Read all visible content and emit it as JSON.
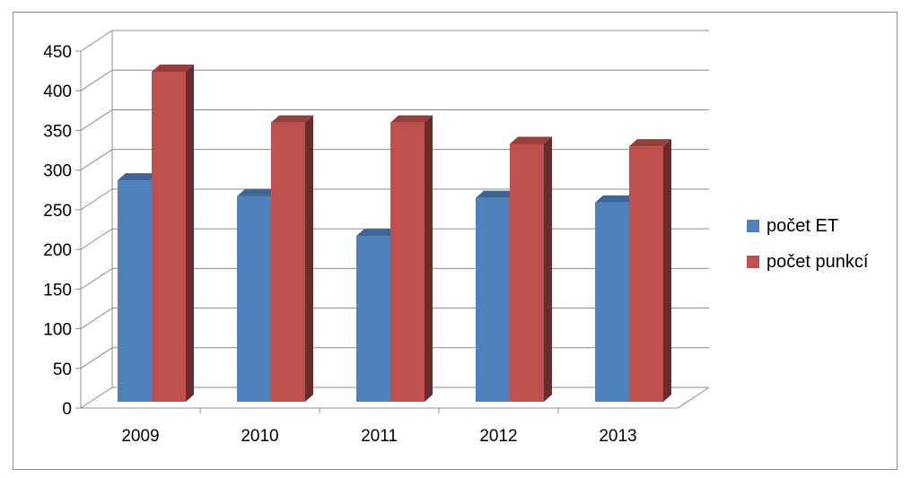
{
  "chart_data": {
    "type": "bar",
    "categories": [
      "2009",
      "2010",
      "2011",
      "2012",
      "2013"
    ],
    "series": [
      {
        "name": "počet ET",
        "values": [
          287,
          267,
          217,
          265,
          259
        ],
        "color": "#4f81bd"
      },
      {
        "name": "počet punkcí",
        "values": [
          424,
          360,
          360,
          333,
          330
        ],
        "color": "#c0504d"
      }
    ],
    "y_ticks": [
      "0",
      "50",
      "100",
      "150",
      "200",
      "250",
      "300",
      "350",
      "400",
      "450"
    ],
    "ylim": [
      0,
      450
    ],
    "grid": true,
    "legend_position": "right",
    "title": "",
    "xlabel": "",
    "ylabel": ""
  }
}
